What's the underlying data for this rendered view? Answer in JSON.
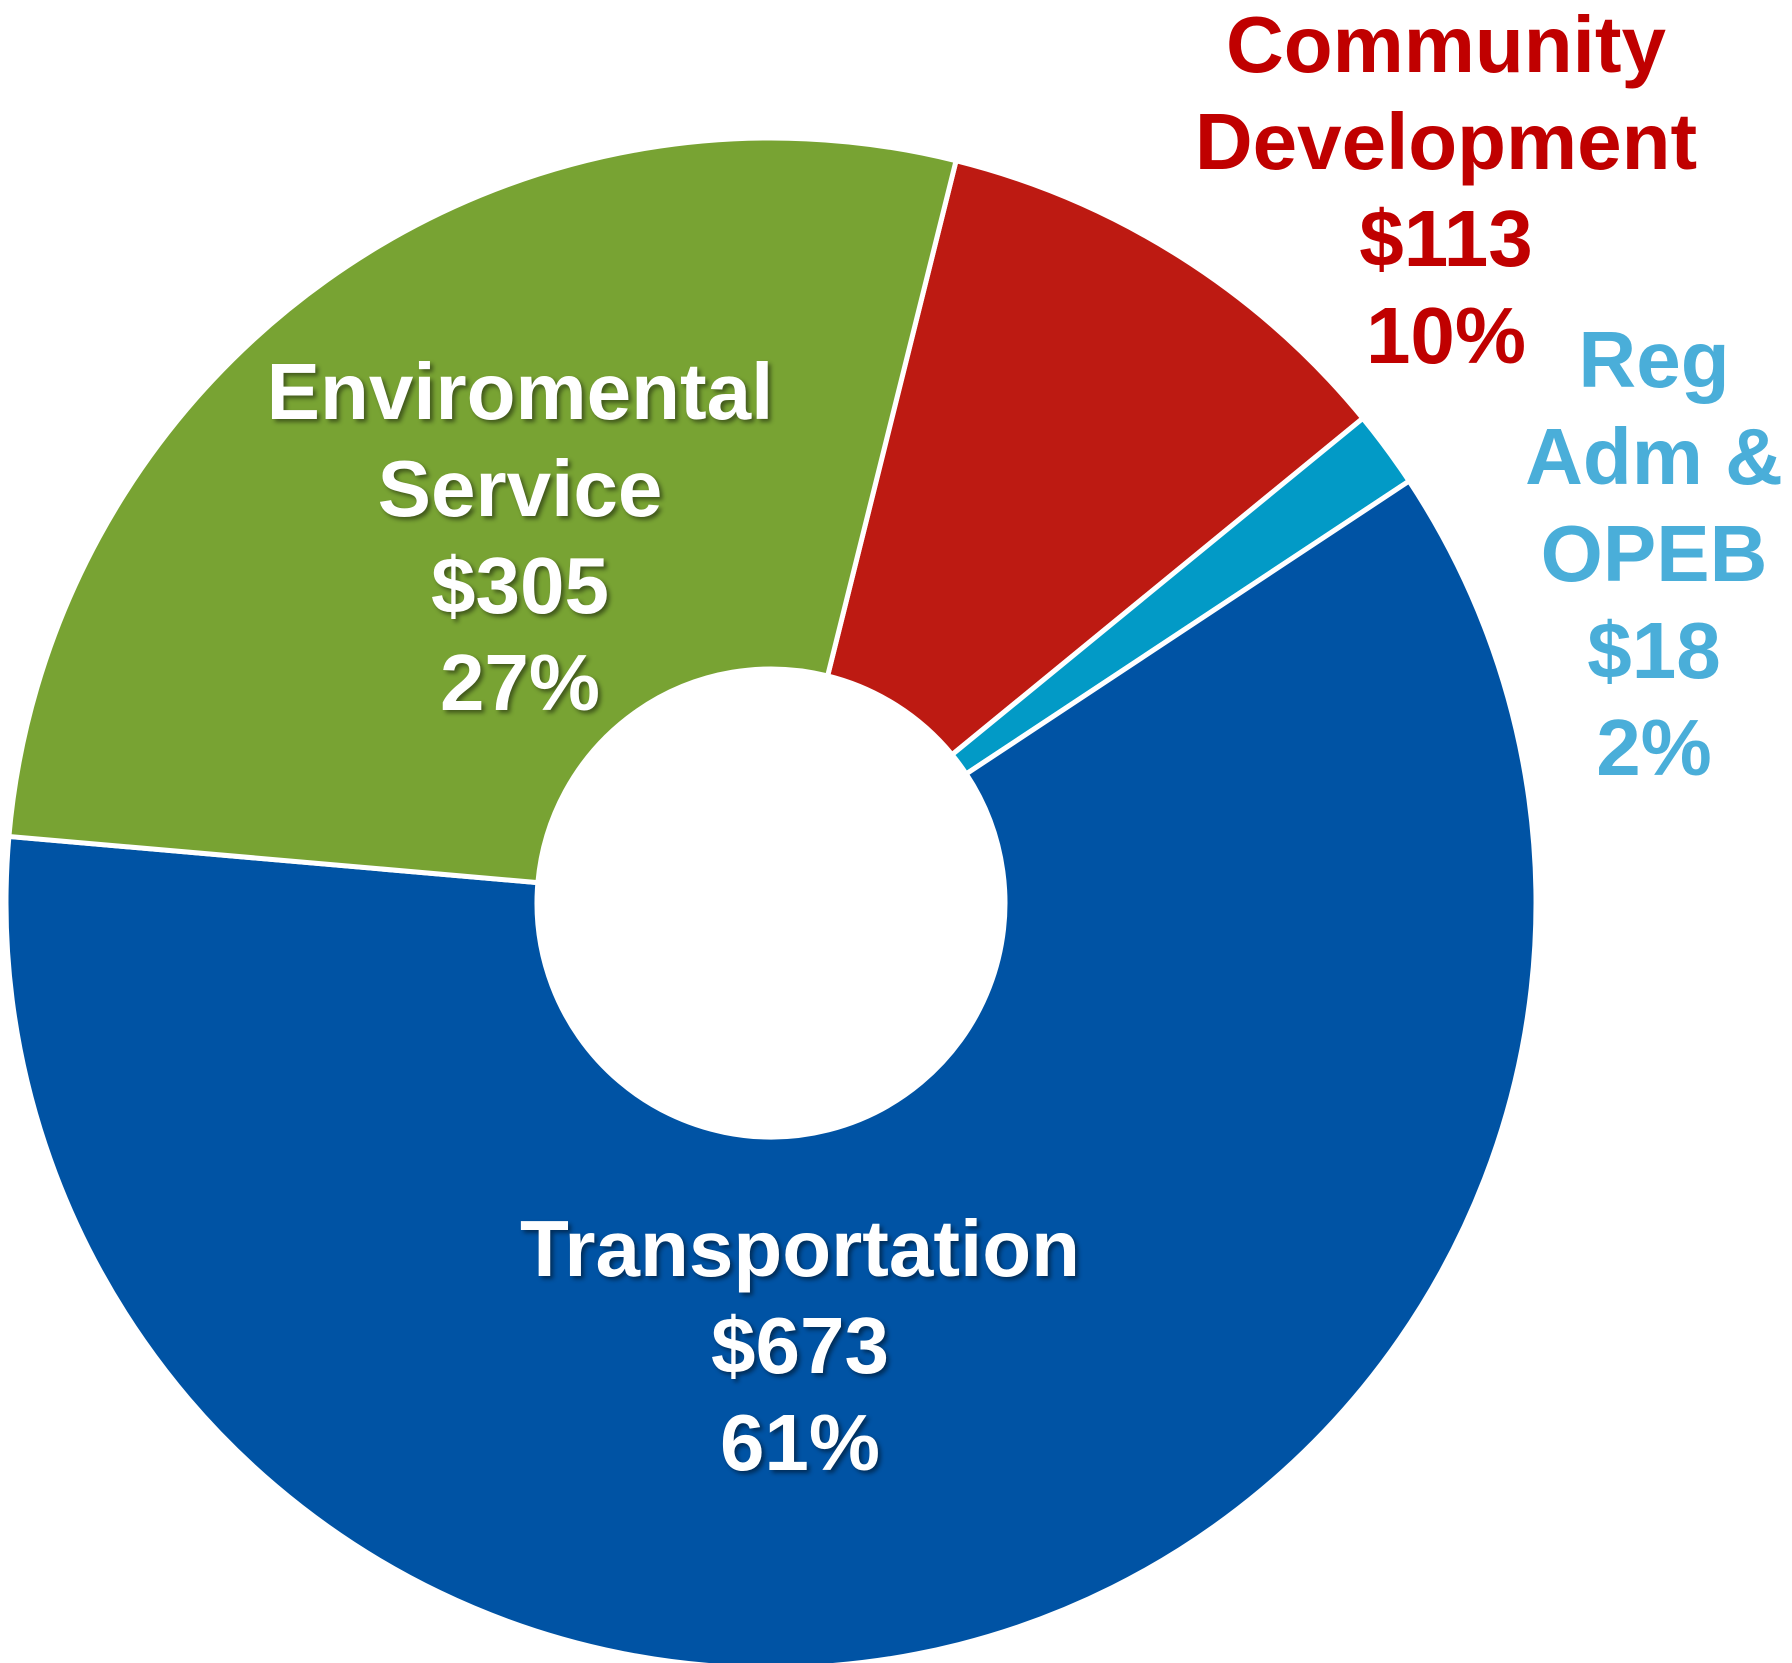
{
  "chart_data": {
    "type": "donut",
    "labels": [
      [
        "Community",
        "Development"
      ],
      [
        "Reg",
        "Adm &",
        "OPEB"
      ],
      [
        "Transportation"
      ],
      [
        "Enviromental",
        "Service"
      ]
    ],
    "values": [
      113,
      18,
      673,
      305
    ],
    "value_labels": [
      "$113",
      "$18",
      "$673",
      "$305"
    ],
    "percents": [
      10,
      2,
      61,
      27
    ],
    "percent_labels": [
      "10%",
      "2%",
      "61%",
      "27%"
    ],
    "colors": [
      "#bd1a12",
      "#029ac6",
      "#0053a4",
      "#78a333"
    ],
    "label_colors": [
      "#c00000",
      "#4aaed9",
      "#ffffff",
      "#ffffff"
    ]
  }
}
